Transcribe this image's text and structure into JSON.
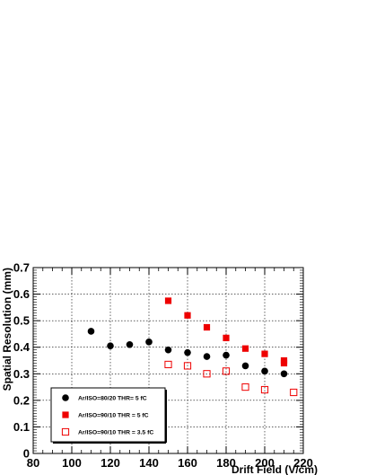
{
  "chart_data": {
    "type": "scatter",
    "xlabel": "Drift Field (V/cm)",
    "ylabel": "Spatial Resolution (mm)",
    "xlim": [
      80,
      220
    ],
    "ylim": [
      0,
      0.7
    ],
    "x_ticks": [
      80,
      100,
      120,
      140,
      160,
      180,
      200,
      220
    ],
    "y_ticks": [
      0,
      0.1,
      0.2,
      0.3,
      0.4,
      0.5,
      0.6,
      0.7
    ],
    "x_tick_labels": [
      "80",
      "100",
      "120",
      "140",
      "160",
      "180",
      "200",
      "220"
    ],
    "y_tick_labels": [
      "0",
      "0.1",
      "0.2",
      "0.3",
      "0.4",
      "0.5",
      "0.6",
      "0.7"
    ],
    "grid": true,
    "legend_position": "bottom-left",
    "series": [
      {
        "name": "Ar/ISO=80/20 THR= 5 fC",
        "marker": "filled-circle",
        "color": "#000000",
        "x": [
          110,
          120,
          130,
          140,
          150,
          160,
          170,
          180,
          190,
          200,
          210
        ],
        "y": [
          0.46,
          0.405,
          0.41,
          0.42,
          0.39,
          0.38,
          0.365,
          0.37,
          0.33,
          0.31,
          0.3
        ]
      },
      {
        "name": "Ar/ISO=90/10 THR = 5 fC",
        "marker": "filled-square",
        "color": "#ee0000",
        "x": [
          150,
          160,
          170,
          180,
          190,
          200,
          210,
          210
        ],
        "y": [
          0.575,
          0.52,
          0.475,
          0.435,
          0.395,
          0.375,
          0.35,
          0.34
        ]
      },
      {
        "name": "Ar/ISO=90/10 THR = 3.5 fC",
        "marker": "open-square",
        "color": "#ee0000",
        "x": [
          150,
          160,
          170,
          180,
          190,
          200,
          215
        ],
        "y": [
          0.335,
          0.33,
          0.3,
          0.31,
          0.25,
          0.24,
          0.23
        ]
      }
    ]
  }
}
